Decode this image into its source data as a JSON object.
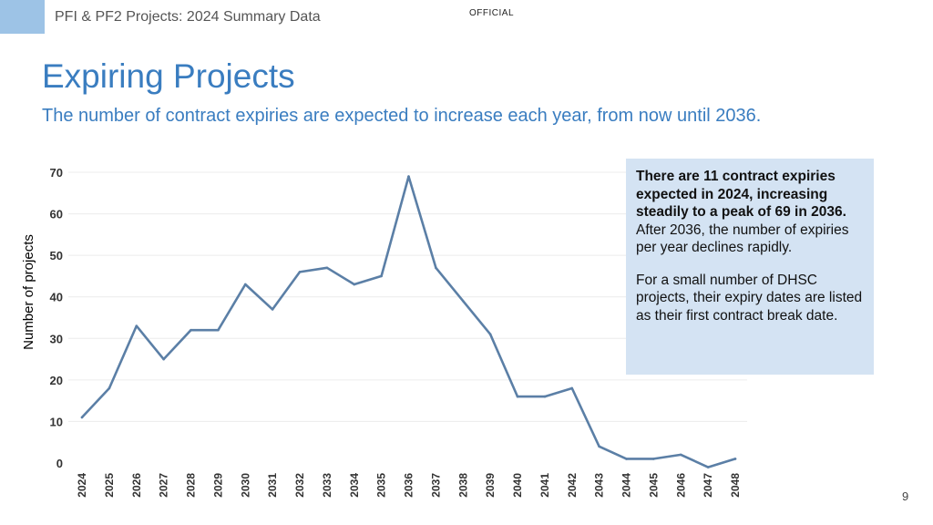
{
  "header": {
    "title": "PFI & PF2 Projects: 2024 Summary Data",
    "classification": "OFFICIAL"
  },
  "slide": {
    "title": "Expiring Projects",
    "subtitle": "The number of contract expiries are expected to increase each year, from now until 2036.",
    "page_number": "9"
  },
  "callout": {
    "bold_text": "There are 11 contract expiries expected in 2024, increasing steadily to a peak of 69 in 2036.",
    "regular_text": " After 2036, the number of expiries per year declines rapidly.",
    "note": "For a small number of DHSC projects, their expiry dates are listed as their first contract break date."
  },
  "colors": {
    "accent": "#3a7dc0",
    "line": "#5b7fa6",
    "corner": "#9dc3e6",
    "callout_bg": "#d4e3f3"
  },
  "chart_data": {
    "type": "line",
    "title": "",
    "xlabel": "",
    "ylabel": "Number of projects",
    "categories": [
      "2024",
      "2025",
      "2026",
      "2027",
      "2028",
      "2029",
      "2030",
      "2031",
      "2032",
      "2033",
      "2034",
      "2035",
      "2036",
      "2037",
      "2038",
      "2039",
      "2040",
      "2041",
      "2042",
      "2043",
      "2044",
      "2045",
      "2046",
      "2047",
      "2048"
    ],
    "values": [
      11,
      18,
      33,
      25,
      32,
      32,
      43,
      37,
      46,
      47,
      43,
      45,
      69,
      47,
      39,
      31,
      16,
      16,
      18,
      4,
      1,
      1,
      2,
      -1,
      1
    ],
    "ylim": [
      0,
      70
    ],
    "yticks": [
      0,
      10,
      20,
      30,
      40,
      50,
      60,
      70
    ],
    "grid": true
  }
}
